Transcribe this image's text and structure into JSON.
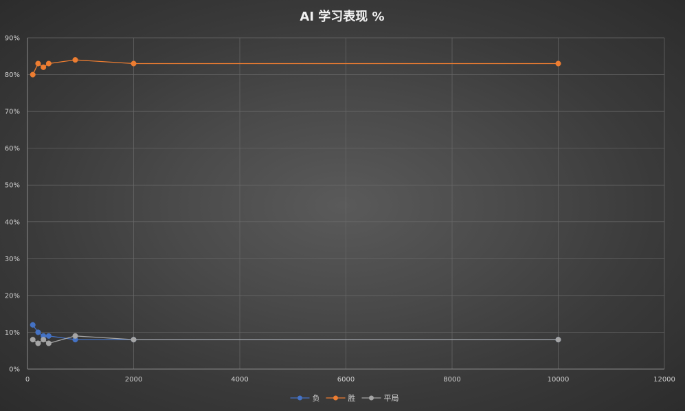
{
  "chart_data": {
    "type": "line",
    "title": "AI 学习表现 %",
    "xlabel": "",
    "ylabel": "",
    "xlim": [
      0,
      12000
    ],
    "ylim": [
      0,
      90
    ],
    "x_ticks": [
      "0",
      "2000",
      "4000",
      "6000",
      "8000",
      "10000",
      "12000"
    ],
    "x_tick_values": [
      0,
      2000,
      4000,
      6000,
      8000,
      10000,
      12000
    ],
    "y_ticks": [
      "0%",
      "10%",
      "20%",
      "30%",
      "40%",
      "50%",
      "60%",
      "70%",
      "80%",
      "90%"
    ],
    "y_tick_values": [
      0,
      10,
      20,
      30,
      40,
      50,
      60,
      70,
      80,
      90
    ],
    "grid": true,
    "legend_position": "bottom",
    "series": [
      {
        "name": "负",
        "color": "#4472c4",
        "points": [
          [
            100,
            12
          ],
          [
            200,
            10
          ],
          [
            300,
            9
          ],
          [
            400,
            9
          ],
          [
            900,
            8
          ],
          [
            2000,
            8
          ],
          [
            10000,
            8
          ]
        ]
      },
      {
        "name": "胜",
        "color": "#ed7d31",
        "points": [
          [
            100,
            80
          ],
          [
            200,
            83
          ],
          [
            300,
            82
          ],
          [
            400,
            83
          ],
          [
            900,
            84
          ],
          [
            2000,
            83
          ],
          [
            10000,
            83
          ]
        ]
      },
      {
        "name": "平局",
        "color": "#a5a5a5",
        "points": [
          [
            100,
            8
          ],
          [
            200,
            7
          ],
          [
            300,
            8
          ],
          [
            400,
            7
          ],
          [
            900,
            9
          ],
          [
            2000,
            8
          ],
          [
            10000,
            8
          ]
        ]
      }
    ]
  }
}
